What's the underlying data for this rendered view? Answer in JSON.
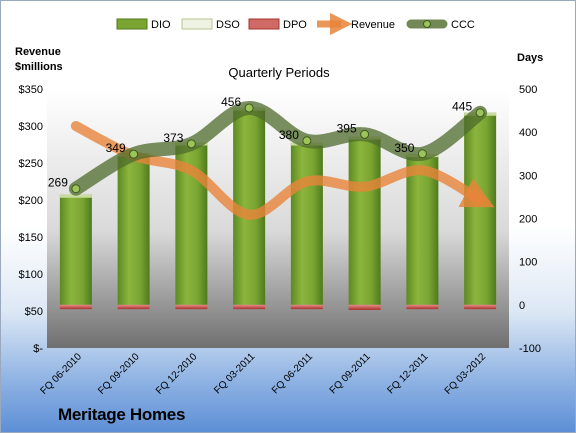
{
  "company": "Meritage Homes",
  "chart_data": {
    "type": "bar",
    "title": "Quarterly Periods",
    "categories": [
      "FQ 06-2010",
      "FQ 09-2010",
      "FQ 12-2010",
      "FQ 03-2011",
      "FQ 06-2011",
      "FQ 09-2011",
      "FQ 12-2011",
      "FQ 03-2012"
    ],
    "y_left": {
      "label_line1": "Revenue",
      "label_line2": "$millions",
      "range": [
        0,
        350
      ],
      "ticks": [
        "$-",
        "$50",
        "$100",
        "$150",
        "$200",
        "$250",
        "$300",
        "$350"
      ]
    },
    "y_right": {
      "label": "Days",
      "range": [
        -100,
        500
      ],
      "ticks": [
        "-100",
        "0",
        "100",
        "200",
        "300",
        "400",
        "500"
      ]
    },
    "legend_position": "top",
    "series": [
      {
        "name": "DIO",
        "type": "bar",
        "axis": "right",
        "color": "#6e9a2a",
        "values": [
          255,
          351,
          376,
          457,
          376,
          390,
          349,
          445
        ]
      },
      {
        "name": "DSO",
        "type": "bar",
        "axis": "right",
        "color": "#eef2e2",
        "values": [
          0,
          0,
          0,
          0,
          0,
          0,
          0,
          0
        ]
      },
      {
        "name": "DPO",
        "type": "bar",
        "axis": "right",
        "color": "#c0504d",
        "values": [
          -10,
          -10,
          -10,
          -10,
          -10,
          -12,
          -10,
          -10
        ]
      },
      {
        "name": "Revenue",
        "type": "line",
        "axis": "left",
        "color": "#e8843a",
        "values": [
          300,
          260,
          240,
          180,
          225,
          218,
          240,
          200
        ]
      },
      {
        "name": "CCC",
        "type": "line",
        "axis": "right",
        "color": "#4f6b2c",
        "values": [
          269,
          349,
          373,
          456,
          380,
          395,
          350,
          445
        ]
      }
    ],
    "data_labels": [
      "269",
      "349",
      "373",
      "456",
      "380",
      "395",
      "350",
      "445"
    ]
  }
}
